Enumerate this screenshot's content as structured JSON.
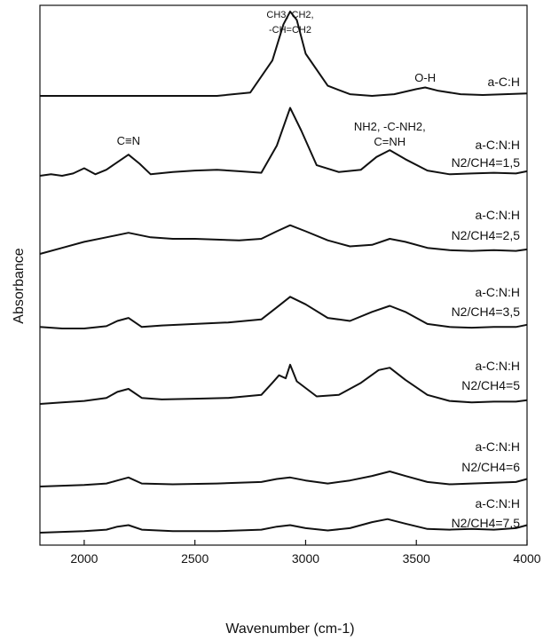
{
  "chart_data": {
    "type": "line",
    "title": "",
    "xlabel": "Wavenumber (cm-1)",
    "ylabel": "Absorbance",
    "xlim": [
      1800,
      4000
    ],
    "x_ticks": [
      "2000",
      "2500",
      "3000",
      "3500",
      "4000"
    ],
    "x_tick_values": [
      2000,
      2500,
      3000,
      3500,
      4000
    ],
    "grid": false,
    "annotations": [
      {
        "id": "ch",
        "text_lines": [
          "CH3, CH2,",
          "-CH=CH2"
        ],
        "x": 2930
      },
      {
        "id": "oh",
        "text_lines": [
          "O-H"
        ],
        "x": 3540
      },
      {
        "id": "cn",
        "text_lines": [
          "C≡N"
        ],
        "x": 2200
      },
      {
        "id": "nh",
        "text_lines": [
          "NH2, -C-NH2,",
          "C=NH"
        ],
        "x": 3380
      }
    ],
    "series": [
      {
        "name": "a-C:H",
        "label_lines": [
          "a-C:H"
        ],
        "x": [
          1800,
          2000,
          2200,
          2400,
          2600,
          2750,
          2850,
          2900,
          2930,
          2960,
          3000,
          3100,
          3200,
          3300,
          3400,
          3500,
          3540,
          3600,
          3700,
          3800,
          3900,
          4000
        ],
        "y": [
          0.0,
          0.0,
          0.0,
          0.0,
          0.0,
          0.04,
          0.42,
          0.85,
          1.0,
          0.9,
          0.5,
          0.12,
          0.02,
          0.0,
          0.02,
          0.08,
          0.1,
          0.06,
          0.02,
          0.01,
          0.02,
          0.03
        ]
      },
      {
        "name": "N2/CH4=1,5",
        "label_lines": [
          "a-C:N:H",
          "N2/CH4=1,5"
        ],
        "x": [
          1800,
          1850,
          1900,
          1950,
          2000,
          2050,
          2100,
          2150,
          2200,
          2250,
          2300,
          2400,
          2500,
          2600,
          2700,
          2800,
          2870,
          2930,
          2980,
          3050,
          3150,
          3250,
          3320,
          3380,
          3450,
          3550,
          3650,
          3750,
          3850,
          3950,
          4000
        ],
        "y": [
          0.0,
          0.02,
          0.0,
          0.03,
          0.1,
          0.02,
          0.08,
          0.18,
          0.28,
          0.16,
          0.02,
          0.05,
          0.07,
          0.08,
          0.06,
          0.04,
          0.4,
          0.9,
          0.6,
          0.14,
          0.05,
          0.08,
          0.25,
          0.34,
          0.22,
          0.07,
          0.02,
          0.03,
          0.04,
          0.03,
          0.06
        ]
      },
      {
        "name": "N2/CH4=2,5",
        "label_lines": [
          "a-C:N:H",
          "N2/CH4=2,5"
        ],
        "x": [
          1800,
          1900,
          2000,
          2100,
          2200,
          2300,
          2400,
          2500,
          2600,
          2700,
          2800,
          2870,
          2930,
          3000,
          3100,
          3200,
          3300,
          3380,
          3450,
          3550,
          3650,
          3750,
          3850,
          3950,
          4000
        ],
        "y": [
          0.0,
          0.08,
          0.16,
          0.22,
          0.28,
          0.22,
          0.2,
          0.2,
          0.19,
          0.18,
          0.2,
          0.3,
          0.38,
          0.3,
          0.18,
          0.1,
          0.12,
          0.2,
          0.16,
          0.08,
          0.05,
          0.04,
          0.05,
          0.04,
          0.06
        ]
      },
      {
        "name": "N2/CH4=3,5",
        "label_lines": [
          "a-C:N:H",
          "N2/CH4=3,5"
        ],
        "x": [
          1800,
          1900,
          2000,
          2100,
          2150,
          2200,
          2260,
          2350,
          2500,
          2650,
          2800,
          2870,
          2930,
          3000,
          3100,
          3200,
          3300,
          3380,
          3450,
          3550,
          3650,
          3750,
          3850,
          3950,
          4000
        ],
        "y": [
          0.02,
          0.0,
          0.0,
          0.03,
          0.1,
          0.14,
          0.02,
          0.04,
          0.06,
          0.08,
          0.12,
          0.28,
          0.42,
          0.32,
          0.14,
          0.1,
          0.22,
          0.3,
          0.22,
          0.06,
          0.02,
          0.01,
          0.02,
          0.02,
          0.05
        ]
      },
      {
        "name": "N2/CH4=5",
        "label_lines": [
          "a-C:N:H",
          "N2/CH4=5"
        ],
        "x": [
          1800,
          1900,
          2000,
          2100,
          2150,
          2200,
          2260,
          2350,
          2500,
          2650,
          2800,
          2850,
          2880,
          2910,
          2930,
          2960,
          3050,
          3150,
          3250,
          3330,
          3380,
          3450,
          3550,
          3650,
          3750,
          3850,
          3950,
          4000
        ],
        "y": [
          0.0,
          0.02,
          0.04,
          0.08,
          0.16,
          0.2,
          0.08,
          0.06,
          0.07,
          0.08,
          0.12,
          0.28,
          0.38,
          0.34,
          0.52,
          0.3,
          0.1,
          0.12,
          0.28,
          0.45,
          0.48,
          0.32,
          0.12,
          0.04,
          0.02,
          0.03,
          0.03,
          0.05
        ]
      },
      {
        "name": "N2/CH4=6",
        "label_lines": [
          "a-C:N:H",
          "N2/CH4=6"
        ],
        "x": [
          1800,
          1900,
          2000,
          2100,
          2150,
          2200,
          2260,
          2400,
          2600,
          2800,
          2870,
          2930,
          3000,
          3100,
          3200,
          3300,
          3380,
          3450,
          3550,
          3650,
          3750,
          3850,
          3950,
          4000
        ],
        "y": [
          0.0,
          0.01,
          0.02,
          0.04,
          0.08,
          0.12,
          0.04,
          0.03,
          0.04,
          0.06,
          0.1,
          0.12,
          0.08,
          0.04,
          0.08,
          0.14,
          0.2,
          0.14,
          0.06,
          0.03,
          0.04,
          0.05,
          0.06,
          0.1
        ]
      },
      {
        "name": "N2/CH4=7,5",
        "label_lines": [
          "a-C:N:H",
          "N2/CH4=7,5"
        ],
        "x": [
          1800,
          1900,
          2000,
          2100,
          2150,
          2200,
          2260,
          2400,
          2600,
          2800,
          2870,
          2930,
          3000,
          3100,
          3200,
          3300,
          3370,
          3450,
          3550,
          3650,
          3750,
          3850,
          3950,
          4000
        ],
        "y": [
          0.0,
          0.01,
          0.02,
          0.04,
          0.08,
          0.1,
          0.04,
          0.02,
          0.02,
          0.04,
          0.08,
          0.1,
          0.06,
          0.03,
          0.06,
          0.14,
          0.18,
          0.12,
          0.05,
          0.04,
          0.05,
          0.04,
          0.06,
          0.1
        ]
      }
    ]
  }
}
